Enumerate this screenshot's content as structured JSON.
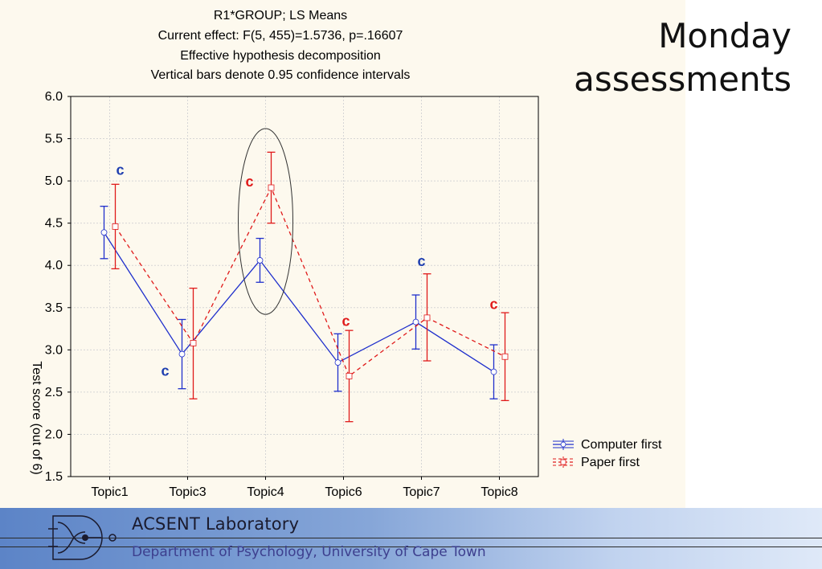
{
  "slide_title_lines": [
    "Monday",
    "assessments"
  ],
  "footer": {
    "lab_name": "ACSENT Laboratory",
    "department": "Department of Psychology, University of Cape Town"
  },
  "chart_data": {
    "type": "line",
    "title": [
      "R1*GROUP; LS Means",
      "Current effect: F(5, 455)=1.5736, p=.16607",
      "Effective hypothesis decomposition",
      "Vertical bars denote 0.95 confidence intervals"
    ],
    "xlabel": "",
    "ylabel": "Test score (out of 6)",
    "ylim": [
      1.5,
      6.0
    ],
    "yticks": [
      "1.5",
      "2.0",
      "2.5",
      "3.0",
      "3.5",
      "4.0",
      "4.5",
      "5.0",
      "5.5",
      "6.0"
    ],
    "categories": [
      "Topic1",
      "Topic3",
      "Topic4",
      "Topic6",
      "Topic7",
      "Topic8"
    ],
    "grid": true,
    "legend_position": "right",
    "series": [
      {
        "name": "Computer first",
        "color": "#1f2fcc",
        "line_style": "solid",
        "marker": "circle",
        "values": [
          4.39,
          2.95,
          4.06,
          2.85,
          3.33,
          2.74
        ],
        "ci_low": [
          4.08,
          2.54,
          3.8,
          2.51,
          3.01,
          2.42
        ],
        "ci_high": [
          4.7,
          3.36,
          4.32,
          3.19,
          3.65,
          3.06
        ]
      },
      {
        "name": "Paper first",
        "color": "#e01a1a",
        "line_style": "dashed",
        "marker": "square",
        "values": [
          4.46,
          3.08,
          4.92,
          2.69,
          3.38,
          2.92
        ],
        "ci_low": [
          3.96,
          2.42,
          4.5,
          2.15,
          2.87,
          2.4
        ],
        "ci_high": [
          4.96,
          3.73,
          5.34,
          3.23,
          3.9,
          3.44
        ]
      }
    ],
    "annotations": [
      {
        "text": "c",
        "color": "#1f3fb0",
        "category": "Topic1",
        "y": 5.13
      },
      {
        "text": "c",
        "color": "#e01a1a",
        "category": "Topic4",
        "y": 4.99
      },
      {
        "text": "c",
        "color": "#1f3fb0",
        "category": "Topic3",
        "y": 2.75
      },
      {
        "text": "c",
        "color": "#e01a1a",
        "category": "Topic6",
        "y": 3.34
      },
      {
        "text": "c",
        "color": "#1f3fb0",
        "category": "Topic7",
        "y": 4.05
      },
      {
        "text": "c",
        "color": "#e01a1a",
        "category": "Topic8",
        "y": 3.54
      }
    ],
    "highlight": {
      "shape": "ellipse",
      "category": "Topic4",
      "y_range": [
        3.42,
        5.62
      ]
    }
  }
}
